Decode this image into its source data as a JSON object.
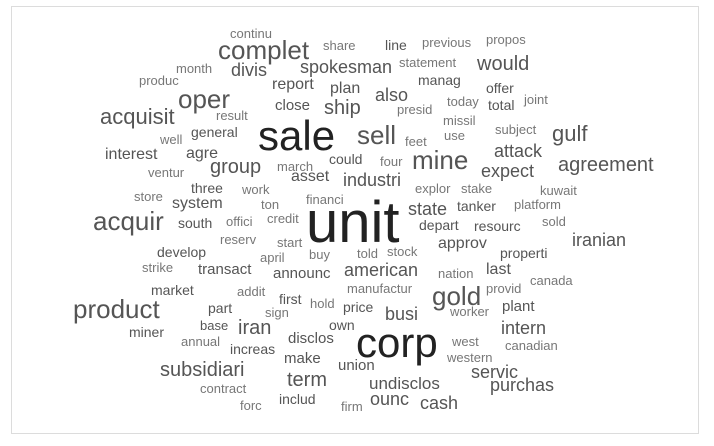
{
  "words": [
    {
      "text": "unit",
      "weight": 1.0,
      "color": "#222222"
    },
    {
      "text": "sale",
      "weight": 0.85,
      "color": "#222222"
    },
    {
      "text": "corp",
      "weight": 0.85,
      "color": "#222222"
    },
    {
      "text": "complet",
      "weight": 0.5,
      "color": "#555555"
    },
    {
      "text": "mine",
      "weight": 0.5,
      "color": "#555555"
    },
    {
      "text": "acquir",
      "weight": 0.5,
      "color": "#555555"
    },
    {
      "text": "product",
      "weight": 0.5,
      "color": "#555555"
    },
    {
      "text": "gold",
      "weight": 0.5,
      "color": "#555555"
    },
    {
      "text": "oper",
      "weight": 0.45,
      "color": "#555555"
    },
    {
      "text": "sell",
      "weight": 0.45,
      "color": "#555555"
    },
    {
      "text": "acquisit",
      "weight": 0.4,
      "color": "#555555"
    },
    {
      "text": "gulf",
      "weight": 0.4,
      "color": "#555555"
    },
    {
      "text": "would",
      "weight": 0.38,
      "color": "#555555"
    },
    {
      "text": "group",
      "weight": 0.36,
      "color": "#555555"
    },
    {
      "text": "ship",
      "weight": 0.36,
      "color": "#555555"
    },
    {
      "text": "agreement",
      "weight": 0.34,
      "color": "#555555"
    },
    {
      "text": "subsidiari",
      "weight": 0.34,
      "color": "#555555"
    },
    {
      "text": "iran",
      "weight": 0.34,
      "color": "#555555"
    },
    {
      "text": "term",
      "weight": 0.34,
      "color": "#555555"
    },
    {
      "text": "attack",
      "weight": 0.32,
      "color": "#555555"
    },
    {
      "text": "expect",
      "weight": 0.32,
      "color": "#555555"
    },
    {
      "text": "state",
      "weight": 0.32,
      "color": "#555555"
    },
    {
      "text": "divis",
      "weight": 0.28,
      "color": "#555555"
    },
    {
      "text": "spokesman",
      "weight": 0.28,
      "color": "#555555"
    },
    {
      "text": "also",
      "weight": 0.28,
      "color": "#555555"
    },
    {
      "text": "industri",
      "weight": 0.28,
      "color": "#555555"
    },
    {
      "text": "american",
      "weight": 0.28,
      "color": "#555555"
    },
    {
      "text": "iranian",
      "weight": 0.28,
      "color": "#555555"
    },
    {
      "text": "busi",
      "weight": 0.28,
      "color": "#555555"
    },
    {
      "text": "intern",
      "weight": 0.28,
      "color": "#555555"
    },
    {
      "text": "purchas",
      "weight": 0.28,
      "color": "#555555"
    },
    {
      "text": "servic",
      "weight": 0.28,
      "color": "#555555"
    },
    {
      "text": "ounc",
      "weight": 0.28,
      "color": "#555555"
    },
    {
      "text": "cash",
      "weight": 0.26,
      "color": "#555555"
    },
    {
      "text": "undisclos",
      "weight": 0.26,
      "color": "#555555"
    },
    {
      "text": "interest",
      "weight": 0.25,
      "color": "#555555"
    },
    {
      "text": "agre",
      "weight": 0.25,
      "color": "#555555"
    },
    {
      "text": "system",
      "weight": 0.25,
      "color": "#555555"
    },
    {
      "text": "asset",
      "weight": 0.25,
      "color": "#555555"
    },
    {
      "text": "plan",
      "weight": 0.25,
      "color": "#555555"
    },
    {
      "text": "report",
      "weight": 0.25,
      "color": "#555555"
    },
    {
      "text": "last",
      "weight": 0.25,
      "color": "#555555"
    },
    {
      "text": "approv",
      "weight": 0.25,
      "color": "#555555"
    },
    {
      "text": "transact",
      "weight": 0.22,
      "color": "#555555"
    },
    {
      "text": "announc",
      "weight": 0.22,
      "color": "#555555"
    },
    {
      "text": "disclos",
      "weight": 0.22,
      "color": "#555555"
    },
    {
      "text": "make",
      "weight": 0.22,
      "color": "#555555"
    },
    {
      "text": "union",
      "weight": 0.22,
      "color": "#555555"
    },
    {
      "text": "plant",
      "weight": 0.22,
      "color": "#555555"
    },
    {
      "text": "close",
      "weight": 0.22,
      "color": "#555555"
    },
    {
      "text": "develop",
      "weight": 0.2,
      "color": "#555555"
    },
    {
      "text": "south",
      "weight": 0.2,
      "color": "#555555"
    },
    {
      "text": "increas",
      "weight": 0.2,
      "color": "#555555"
    },
    {
      "text": "properti",
      "weight": 0.2,
      "color": "#555555"
    },
    {
      "text": "depart",
      "weight": 0.2,
      "color": "#555555"
    },
    {
      "text": "tanker",
      "weight": 0.2,
      "color": "#555555"
    },
    {
      "text": "own",
      "weight": 0.2,
      "color": "#555555"
    },
    {
      "text": "price",
      "weight": 0.2,
      "color": "#555555"
    },
    {
      "text": "three",
      "weight": 0.18,
      "color": "#555555"
    },
    {
      "text": "market",
      "weight": 0.18,
      "color": "#555555"
    },
    {
      "text": "line",
      "weight": 0.18,
      "color": "#555555"
    },
    {
      "text": "manag",
      "weight": 0.18,
      "color": "#555555"
    },
    {
      "text": "includ",
      "weight": 0.18,
      "color": "#555555"
    },
    {
      "text": "general",
      "weight": 0.18,
      "color": "#555555"
    },
    {
      "text": "part",
      "weight": 0.18,
      "color": "#555555"
    },
    {
      "text": "first",
      "weight": 0.18,
      "color": "#555555"
    },
    {
      "text": "resourc",
      "weight": 0.18,
      "color": "#555555"
    },
    {
      "text": "total",
      "weight": 0.18,
      "color": "#555555"
    },
    {
      "text": "offer",
      "weight": 0.18,
      "color": "#555555"
    },
    {
      "text": "could",
      "weight": 0.18,
      "color": "#555555"
    },
    {
      "text": "miner",
      "weight": 0.18,
      "color": "#555555"
    },
    {
      "text": "base",
      "weight": 0.16,
      "color": "#555555"
    },
    {
      "text": "continu",
      "weight": 0.16,
      "color": "#777777"
    },
    {
      "text": "share",
      "weight": 0.16,
      "color": "#777777"
    },
    {
      "text": "previous",
      "weight": 0.16,
      "color": "#777777"
    },
    {
      "text": "propos",
      "weight": 0.16,
      "color": "#777777"
    },
    {
      "text": "month",
      "weight": 0.16,
      "color": "#777777"
    },
    {
      "text": "statement",
      "weight": 0.16,
      "color": "#777777"
    },
    {
      "text": "produc",
      "weight": 0.16,
      "color": "#777777"
    },
    {
      "text": "result",
      "weight": 0.16,
      "color": "#777777"
    },
    {
      "text": "presid",
      "weight": 0.16,
      "color": "#777777"
    },
    {
      "text": "today",
      "weight": 0.16,
      "color": "#777777"
    },
    {
      "text": "joint",
      "weight": 0.16,
      "color": "#777777"
    },
    {
      "text": "missil",
      "weight": 0.16,
      "color": "#777777"
    },
    {
      "text": "use",
      "weight": 0.16,
      "color": "#777777"
    },
    {
      "text": "subject",
      "weight": 0.16,
      "color": "#777777"
    },
    {
      "text": "well",
      "weight": 0.16,
      "color": "#777777"
    },
    {
      "text": "feet",
      "weight": 0.16,
      "color": "#777777"
    },
    {
      "text": "march",
      "weight": 0.16,
      "color": "#777777"
    },
    {
      "text": "four",
      "weight": 0.16,
      "color": "#777777"
    },
    {
      "text": "ventur",
      "weight": 0.16,
      "color": "#777777"
    },
    {
      "text": "work",
      "weight": 0.16,
      "color": "#777777"
    },
    {
      "text": "explor",
      "weight": 0.16,
      "color": "#777777"
    },
    {
      "text": "stake",
      "weight": 0.16,
      "color": "#777777"
    },
    {
      "text": "kuwait",
      "weight": 0.16,
      "color": "#777777"
    },
    {
      "text": "store",
      "weight": 0.16,
      "color": "#777777"
    },
    {
      "text": "financi",
      "weight": 0.16,
      "color": "#777777"
    },
    {
      "text": "ton",
      "weight": 0.16,
      "color": "#777777"
    },
    {
      "text": "platform",
      "weight": 0.16,
      "color": "#777777"
    },
    {
      "text": "offici",
      "weight": 0.16,
      "color": "#777777"
    },
    {
      "text": "credit",
      "weight": 0.16,
      "color": "#777777"
    },
    {
      "text": "sold",
      "weight": 0.16,
      "color": "#777777"
    },
    {
      "text": "reserv",
      "weight": 0.16,
      "color": "#777777"
    },
    {
      "text": "start",
      "weight": 0.16,
      "color": "#777777"
    },
    {
      "text": "told",
      "weight": 0.16,
      "color": "#777777"
    },
    {
      "text": "stock",
      "weight": 0.16,
      "color": "#777777"
    },
    {
      "text": "april",
      "weight": 0.16,
      "color": "#777777"
    },
    {
      "text": "buy",
      "weight": 0.16,
      "color": "#777777"
    },
    {
      "text": "strike",
      "weight": 0.16,
      "color": "#777777"
    },
    {
      "text": "nation",
      "weight": 0.16,
      "color": "#777777"
    },
    {
      "text": "canada",
      "weight": 0.16,
      "color": "#777777"
    },
    {
      "text": "provid",
      "weight": 0.16,
      "color": "#777777"
    },
    {
      "text": "addit",
      "weight": 0.16,
      "color": "#777777"
    },
    {
      "text": "manufactur",
      "weight": 0.16,
      "color": "#777777"
    },
    {
      "text": "hold",
      "weight": 0.16,
      "color": "#777777"
    },
    {
      "text": "sign",
      "weight": 0.16,
      "color": "#777777"
    },
    {
      "text": "worker",
      "weight": 0.16,
      "color": "#777777"
    },
    {
      "text": "annual",
      "weight": 0.16,
      "color": "#777777"
    },
    {
      "text": "west",
      "weight": 0.16,
      "color": "#777777"
    },
    {
      "text": "canadian",
      "weight": 0.16,
      "color": "#777777"
    },
    {
      "text": "western",
      "weight": 0.16,
      "color": "#777777"
    },
    {
      "text": "contract",
      "weight": 0.16,
      "color": "#777777"
    },
    {
      "text": "forc",
      "weight": 0.16,
      "color": "#777777"
    },
    {
      "text": "firm",
      "weight": 0.16,
      "color": "#777777"
    }
  ]
}
